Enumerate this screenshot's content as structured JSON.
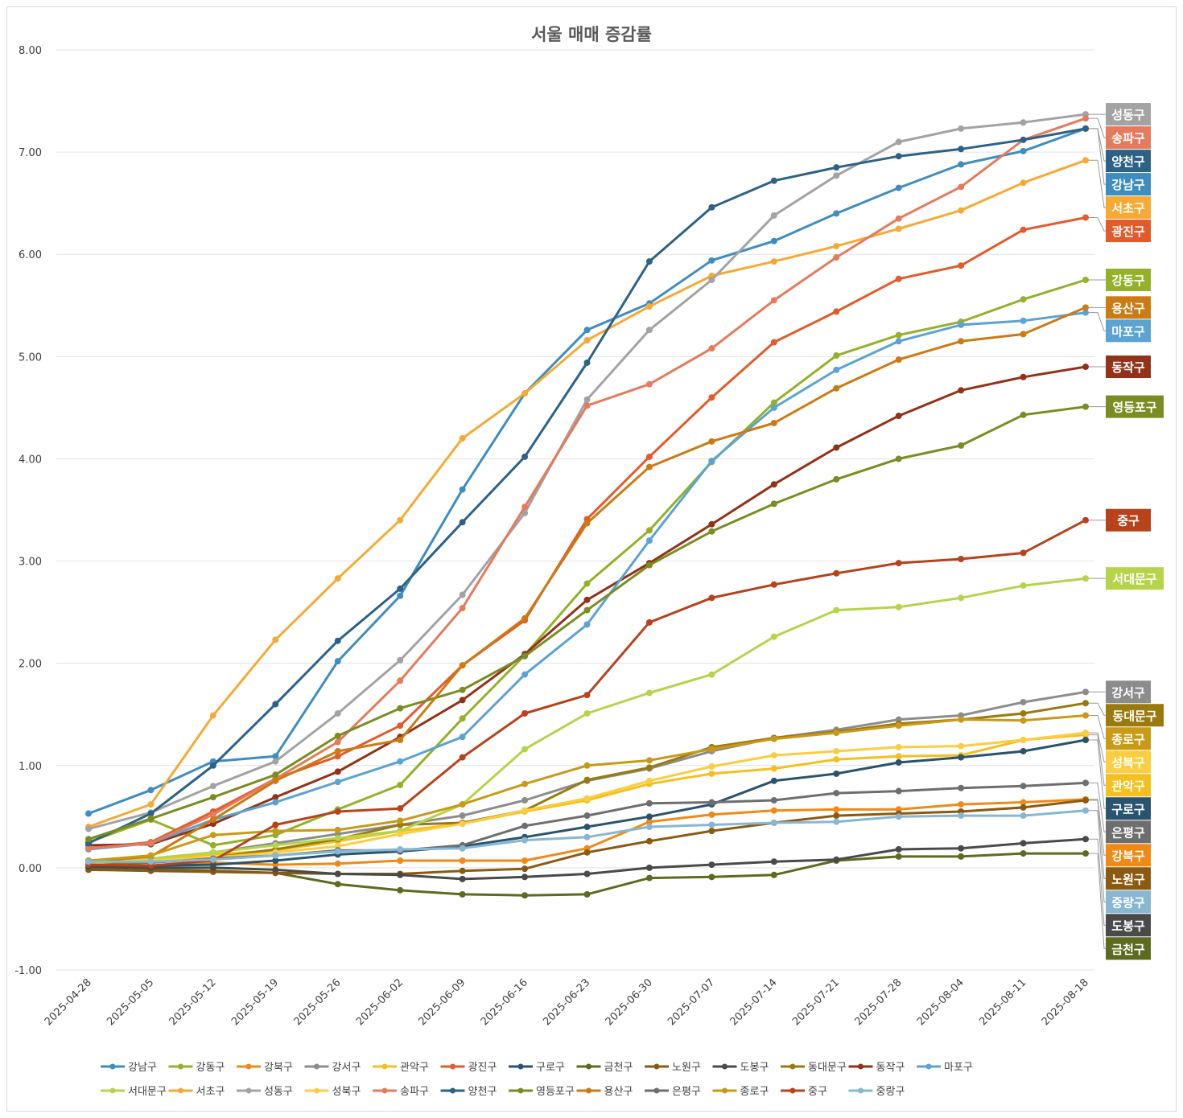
{
  "chart_data": {
    "type": "line",
    "title": "서울 매매 증감률",
    "xlabel": "",
    "ylabel": "",
    "ylim": [
      -1,
      8
    ],
    "yticks": [
      "8.00",
      "7.00",
      "6.00",
      "5.00",
      "4.00",
      "3.00",
      "2.00",
      "1.00",
      "0.00",
      "-1.00"
    ],
    "ytick_values": [
      8,
      7,
      6,
      5,
      4,
      3,
      2,
      1,
      0,
      -1
    ],
    "grid": true,
    "legend": "bottom",
    "x": [
      "2025-04-28",
      "2025-05-05",
      "2025-05-12",
      "2025-05-19",
      "2025-05-26",
      "2025-06-02",
      "2025-06-09",
      "2025-06-16",
      "2025-06-23",
      "2025-06-30",
      "2025-07-07",
      "2025-07-14",
      "2025-07-21",
      "2025-07-28",
      "2025-08-04",
      "2025-08-11",
      "2025-08-18"
    ],
    "series": [
      {
        "name": "강남구",
        "color": "#3E8DC1",
        "values": [
          0.53,
          0.76,
          1.04,
          1.09,
          2.02,
          2.66,
          3.7,
          4.64,
          5.26,
          5.52,
          5.94,
          6.13,
          6.4,
          6.65,
          6.88,
          7.01,
          7.23
        ]
      },
      {
        "name": "강동구",
        "color": "#94B12A",
        "values": [
          0.25,
          0.47,
          0.22,
          0.32,
          0.57,
          0.81,
          1.46,
          2.08,
          2.78,
          3.3,
          3.97,
          4.55,
          5.01,
          5.21,
          5.34,
          5.56,
          5.75
        ]
      },
      {
        "name": "강북구",
        "color": "#F08A16",
        "values": [
          0.05,
          0.02,
          0.05,
          0.03,
          0.04,
          0.07,
          0.07,
          0.07,
          0.19,
          0.45,
          0.52,
          0.56,
          0.57,
          0.57,
          0.62,
          0.64,
          0.67
        ]
      },
      {
        "name": "강서구",
        "color": "#8C8C8C",
        "values": [
          0.07,
          0.08,
          0.15,
          0.24,
          0.33,
          0.42,
          0.51,
          0.66,
          0.85,
          0.97,
          1.14,
          1.27,
          1.35,
          1.45,
          1.49,
          1.62,
          1.72
        ]
      },
      {
        "name": "관악구",
        "color": "#F5C01F",
        "values": [
          0.04,
          0.08,
          0.13,
          0.17,
          0.26,
          0.36,
          0.43,
          0.55,
          0.66,
          0.82,
          0.92,
          0.97,
          1.06,
          1.09,
          1.1,
          1.25,
          1.3
        ]
      },
      {
        "name": "광진구",
        "color": "#E35A2B",
        "values": [
          0.19,
          0.25,
          0.55,
          0.87,
          1.09,
          1.39,
          1.98,
          2.42,
          3.41,
          4.02,
          4.6,
          5.14,
          5.44,
          5.76,
          5.89,
          6.24,
          6.36
        ]
      },
      {
        "name": "구로구",
        "color": "#2A536E",
        "values": [
          0.04,
          0.02,
          0.03,
          0.07,
          0.13,
          0.16,
          0.21,
          0.3,
          0.4,
          0.5,
          0.62,
          0.85,
          0.92,
          1.03,
          1.08,
          1.14,
          1.25
        ]
      },
      {
        "name": "금천구",
        "color": "#5C6B1E",
        "values": [
          -0.01,
          -0.02,
          -0.03,
          -0.05,
          -0.16,
          -0.22,
          -0.26,
          -0.27,
          -0.26,
          -0.1,
          -0.09,
          -0.07,
          0.07,
          0.11,
          0.11,
          0.14,
          0.14
        ]
      },
      {
        "name": "노원구",
        "color": "#8B5A12",
        "values": [
          -0.02,
          -0.03,
          -0.04,
          -0.05,
          -0.06,
          -0.06,
          -0.03,
          -0.01,
          0.15,
          0.26,
          0.36,
          0.44,
          0.51,
          0.53,
          0.55,
          0.59,
          0.66
        ]
      },
      {
        "name": "도봉구",
        "color": "#4A4A4A",
        "values": [
          0.01,
          0.0,
          0.0,
          -0.02,
          -0.06,
          -0.07,
          -0.11,
          -0.09,
          -0.06,
          0.0,
          0.03,
          0.06,
          0.08,
          0.18,
          0.19,
          0.24,
          0.28
        ]
      },
      {
        "name": "동대문구",
        "color": "#9A7A0E",
        "values": [
          0.04,
          0.05,
          0.1,
          0.18,
          0.28,
          0.42,
          0.44,
          0.56,
          0.86,
          0.98,
          1.18,
          1.27,
          1.33,
          1.41,
          1.45,
          1.51,
          1.61
        ]
      },
      {
        "name": "동작구",
        "color": "#923218",
        "values": [
          0.22,
          0.23,
          0.43,
          0.69,
          0.94,
          1.28,
          1.64,
          2.09,
          2.62,
          2.98,
          3.36,
          3.75,
          4.11,
          4.42,
          4.67,
          4.8,
          4.9
        ]
      },
      {
        "name": "마포구",
        "color": "#5BA3D2",
        "values": [
          0.18,
          0.24,
          0.47,
          0.64,
          0.84,
          1.04,
          1.28,
          1.89,
          2.38,
          3.2,
          3.98,
          4.5,
          4.87,
          5.15,
          5.31,
          5.35,
          5.43
        ]
      },
      {
        "name": "서대문구",
        "color": "#B5D44A",
        "values": [
          0.04,
          0.09,
          0.15,
          0.22,
          0.29,
          0.36,
          0.62,
          1.16,
          1.51,
          1.71,
          1.89,
          2.26,
          2.52,
          2.55,
          2.64,
          2.76,
          2.83
        ]
      },
      {
        "name": "서초구",
        "color": "#F6AA34",
        "values": [
          0.4,
          0.62,
          1.49,
          2.23,
          2.83,
          3.4,
          4.2,
          4.64,
          5.16,
          5.49,
          5.79,
          5.93,
          6.08,
          6.25,
          6.43,
          6.7,
          6.92
        ]
      },
      {
        "name": "성동구",
        "color": "#A3A3A3",
        "values": [
          0.38,
          0.54,
          0.8,
          1.04,
          1.51,
          2.03,
          2.67,
          3.47,
          4.58,
          5.26,
          5.75,
          6.38,
          6.77,
          7.1,
          7.23,
          7.29,
          7.37
        ]
      },
      {
        "name": "성북구",
        "color": "#F9CE42",
        "values": [
          0.06,
          0.07,
          0.1,
          0.15,
          0.21,
          0.33,
          0.43,
          0.56,
          0.68,
          0.85,
          0.99,
          1.1,
          1.14,
          1.18,
          1.19,
          1.25,
          1.32
        ]
      },
      {
        "name": "송파구",
        "color": "#E57A5C",
        "values": [
          0.19,
          0.24,
          0.52,
          0.87,
          1.23,
          1.83,
          2.54,
          3.53,
          4.52,
          4.73,
          5.08,
          5.55,
          5.97,
          6.35,
          6.66,
          7.12,
          7.33
        ]
      },
      {
        "name": "양천구",
        "color": "#2D6287",
        "values": [
          0.24,
          0.53,
          1.0,
          1.6,
          2.22,
          2.73,
          3.38,
          4.02,
          4.94,
          5.93,
          6.46,
          6.72,
          6.85,
          6.96,
          7.03,
          7.12,
          7.23
        ]
      },
      {
        "name": "영등포구",
        "color": "#7B8C22",
        "values": [
          0.28,
          0.48,
          0.69,
          0.91,
          1.29,
          1.56,
          1.74,
          2.07,
          2.52,
          2.96,
          3.29,
          3.56,
          3.8,
          4.0,
          4.13,
          4.43,
          4.51
        ]
      },
      {
        "name": "용산구",
        "color": "#CC7A12",
        "values": [
          0.06,
          0.11,
          0.47,
          0.85,
          1.14,
          1.25,
          1.98,
          2.44,
          3.37,
          3.92,
          4.17,
          4.35,
          4.69,
          4.97,
          5.15,
          5.22,
          5.48
        ]
      },
      {
        "name": "은평구",
        "color": "#6E6E6E",
        "values": [
          0.07,
          0.05,
          0.09,
          0.12,
          0.17,
          0.17,
          0.22,
          0.41,
          0.51,
          0.63,
          0.64,
          0.66,
          0.73,
          0.75,
          0.78,
          0.8,
          0.83
        ]
      },
      {
        "name": "종로구",
        "color": "#C99A16",
        "values": [
          0.07,
          0.12,
          0.32,
          0.36,
          0.37,
          0.46,
          0.62,
          0.82,
          1.0,
          1.05,
          1.16,
          1.26,
          1.32,
          1.39,
          1.45,
          1.44,
          1.49
        ]
      },
      {
        "name": "중구",
        "color": "#B7421B",
        "values": [
          0.03,
          0.02,
          0.07,
          0.42,
          0.55,
          0.58,
          1.08,
          1.51,
          1.69,
          2.4,
          2.64,
          2.77,
          2.88,
          2.98,
          3.02,
          3.08,
          3.4
        ]
      },
      {
        "name": "중랑구",
        "color": "#87B7D3",
        "values": [
          0.06,
          0.06,
          0.08,
          0.12,
          0.16,
          0.18,
          0.19,
          0.27,
          0.3,
          0.4,
          0.42,
          0.44,
          0.45,
          0.5,
          0.51,
          0.51,
          0.56
        ]
      }
    ],
    "end_label_order": [
      "성동구",
      "송파구",
      "양천구",
      "강남구",
      "서초구",
      "광진구",
      "강동구",
      "용산구",
      "마포구",
      "동작구",
      "영등포구",
      "중구",
      "서대문구",
      "강서구",
      "동대문구",
      "종로구",
      "성북구",
      "관악구",
      "구로구",
      "은평구",
      "강북구",
      "노원구",
      "중랑구",
      "도봉구",
      "금천구"
    ]
  }
}
